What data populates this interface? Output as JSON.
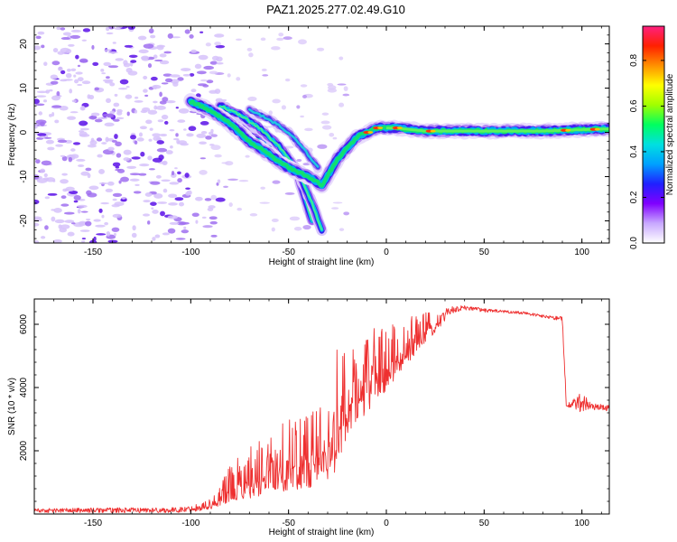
{
  "title": "PAZ1.2025.277.02.49.G10",
  "chart_data": [
    {
      "type": "heatmap",
      "name": "spectrogram",
      "xlabel": "Height of straight line (km)",
      "ylabel": "Frequency (Hz)",
      "xlim": [
        -180,
        114
      ],
      "ylim": [
        -25,
        24
      ],
      "xticks": [
        -150,
        -100,
        -50,
        0,
        50,
        100
      ],
      "yticks": [
        -20,
        -10,
        0,
        10,
        20
      ],
      "colorbar": {
        "label": "Normalized spectral amplitude",
        "range": [
          0.0,
          0.95
        ],
        "ticks": [
          0.0,
          0.2,
          0.4,
          0.6,
          0.8
        ],
        "tick_labels": [
          "0.0",
          "0.2",
          "0.4",
          "0.6",
          "0.8"
        ],
        "colors": [
          "#ffffff",
          "#c8a8ff",
          "#8000ff",
          "#2020ff",
          "#00a0ff",
          "#00e0e0",
          "#00ff60",
          "#a0ff00",
          "#ffff00",
          "#ff9000",
          "#ff2000",
          "#ff2080"
        ]
      },
      "features": {
        "noise_region_x": [
          -180,
          -95
        ],
        "track_main": {
          "x": [
            -100,
            -90,
            -80,
            -70,
            -60,
            -50,
            -40,
            -33,
            -25,
            -15,
            -5,
            5,
            20,
            50,
            80,
            100,
            114
          ],
          "y": [
            7,
            5,
            2,
            -2,
            -5,
            -8,
            -10,
            -12,
            -6,
            -1,
            1,
            1,
            0.3,
            0.3,
            0.3,
            0.6,
            0.8
          ]
        },
        "track_a": {
          "x": [
            -95,
            -85,
            -75,
            -65,
            -55,
            -45,
            -38
          ],
          "y": [
            6,
            4,
            1,
            -2,
            -5,
            -10,
            -20
          ]
        },
        "track_b": {
          "x": [
            -85,
            -75,
            -65,
            -55,
            -45,
            -38,
            -33
          ],
          "y": [
            6,
            4,
            1,
            -3,
            -9,
            -16,
            -22
          ]
        },
        "track_c": {
          "x": [
            -70,
            -60,
            -50,
            -42,
            -35
          ],
          "y": [
            5,
            3,
            0,
            -4,
            -8
          ]
        }
      }
    },
    {
      "type": "line",
      "name": "snr",
      "xlabel": "Height of straight line (km)",
      "ylabel": "SNR (10 * v/v)",
      "xlim": [
        -180,
        114
      ],
      "ylim": [
        0,
        6800
      ],
      "xticks": [
        -150,
        -100,
        -50,
        0,
        50,
        100
      ],
      "yticks": [
        2000,
        4000,
        6000
      ],
      "color": "#ee3030",
      "envelope": {
        "x": [
          -180,
          -140,
          -110,
          -100,
          -90,
          -80,
          -70,
          -60,
          -50,
          -40,
          -30,
          -25,
          -20,
          -15,
          -10,
          -5,
          0,
          10,
          20,
          30,
          40,
          50,
          60,
          70,
          80,
          90,
          92,
          93,
          100,
          105,
          114
        ],
        "lo": [
          40,
          40,
          40,
          60,
          150,
          350,
          500,
          600,
          700,
          800,
          1000,
          1400,
          2400,
          2900,
          3200,
          3500,
          3900,
          4700,
          5400,
          6100,
          6350,
          6300,
          6300,
          6250,
          6150,
          6000,
          3400,
          3350,
          3200,
          3300,
          3250
        ],
        "hi": [
          180,
          200,
          200,
          250,
          500,
          1500,
          2200,
          2600,
          3300,
          3500,
          3700,
          5300,
          5500,
          5200,
          5800,
          5900,
          6000,
          6200,
          6400,
          6550,
          6600,
          6500,
          6450,
          6400,
          6300,
          6250,
          3600,
          3500,
          3900,
          3500,
          3450
        ]
      }
    }
  ]
}
